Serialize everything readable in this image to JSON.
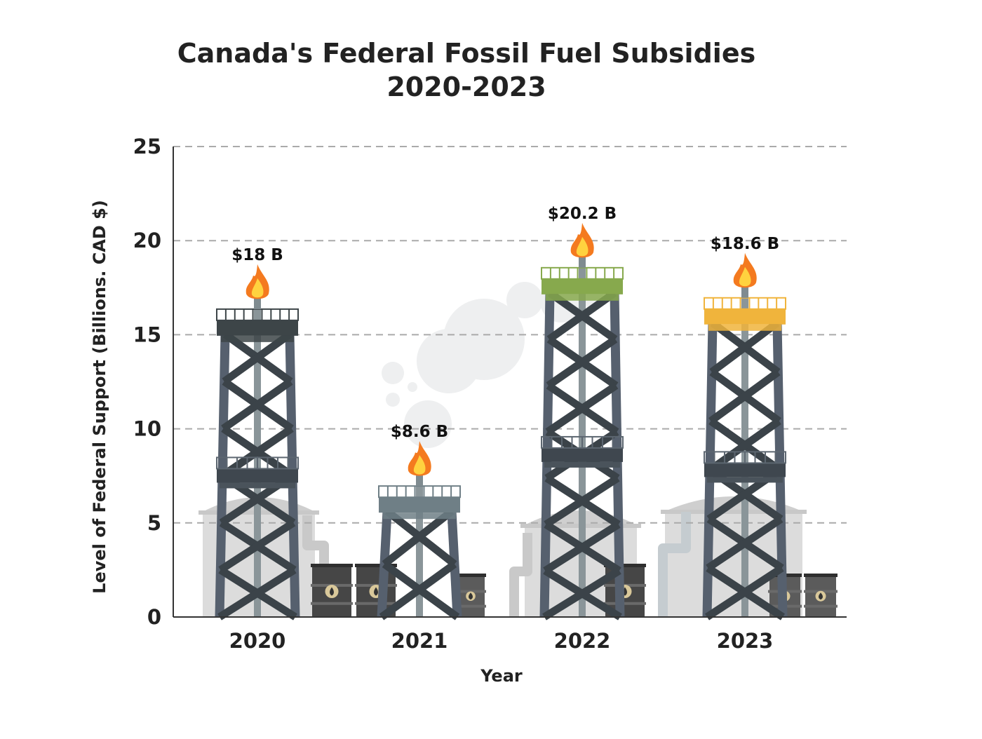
{
  "chart_data": {
    "type": "bar",
    "title": "Canada's Federal Fossil Fuel Subsidies",
    "subtitle": "2020-2023",
    "xlabel": "Year",
    "ylabel": "Level of Federal Support (Billions. CAD $)",
    "categories": [
      "2020",
      "2021",
      "2022",
      "2023"
    ],
    "values": [
      18,
      8.6,
      20.2,
      18.6
    ],
    "data_labels": [
      "$18 B",
      "$8.6 B",
      "$20.2 B",
      "$18.6 B"
    ],
    "ylim": [
      0,
      25
    ],
    "yticks": [
      0,
      5,
      10,
      15,
      20,
      25
    ],
    "grid": true,
    "legend": "none",
    "bar_style": "oil derrick with flame",
    "colors": {
      "derrick": "#56606e",
      "platform_2020": "#3d4548",
      "platform_2021": "#6f7f86",
      "platform_2022": "#87a94d",
      "platform_2023": "#f0b43c",
      "flame_outer": "#f47a1f",
      "flame_inner": "#ffd23f",
      "gridline": "#aaaaaa",
      "axis": "#333333"
    }
  }
}
